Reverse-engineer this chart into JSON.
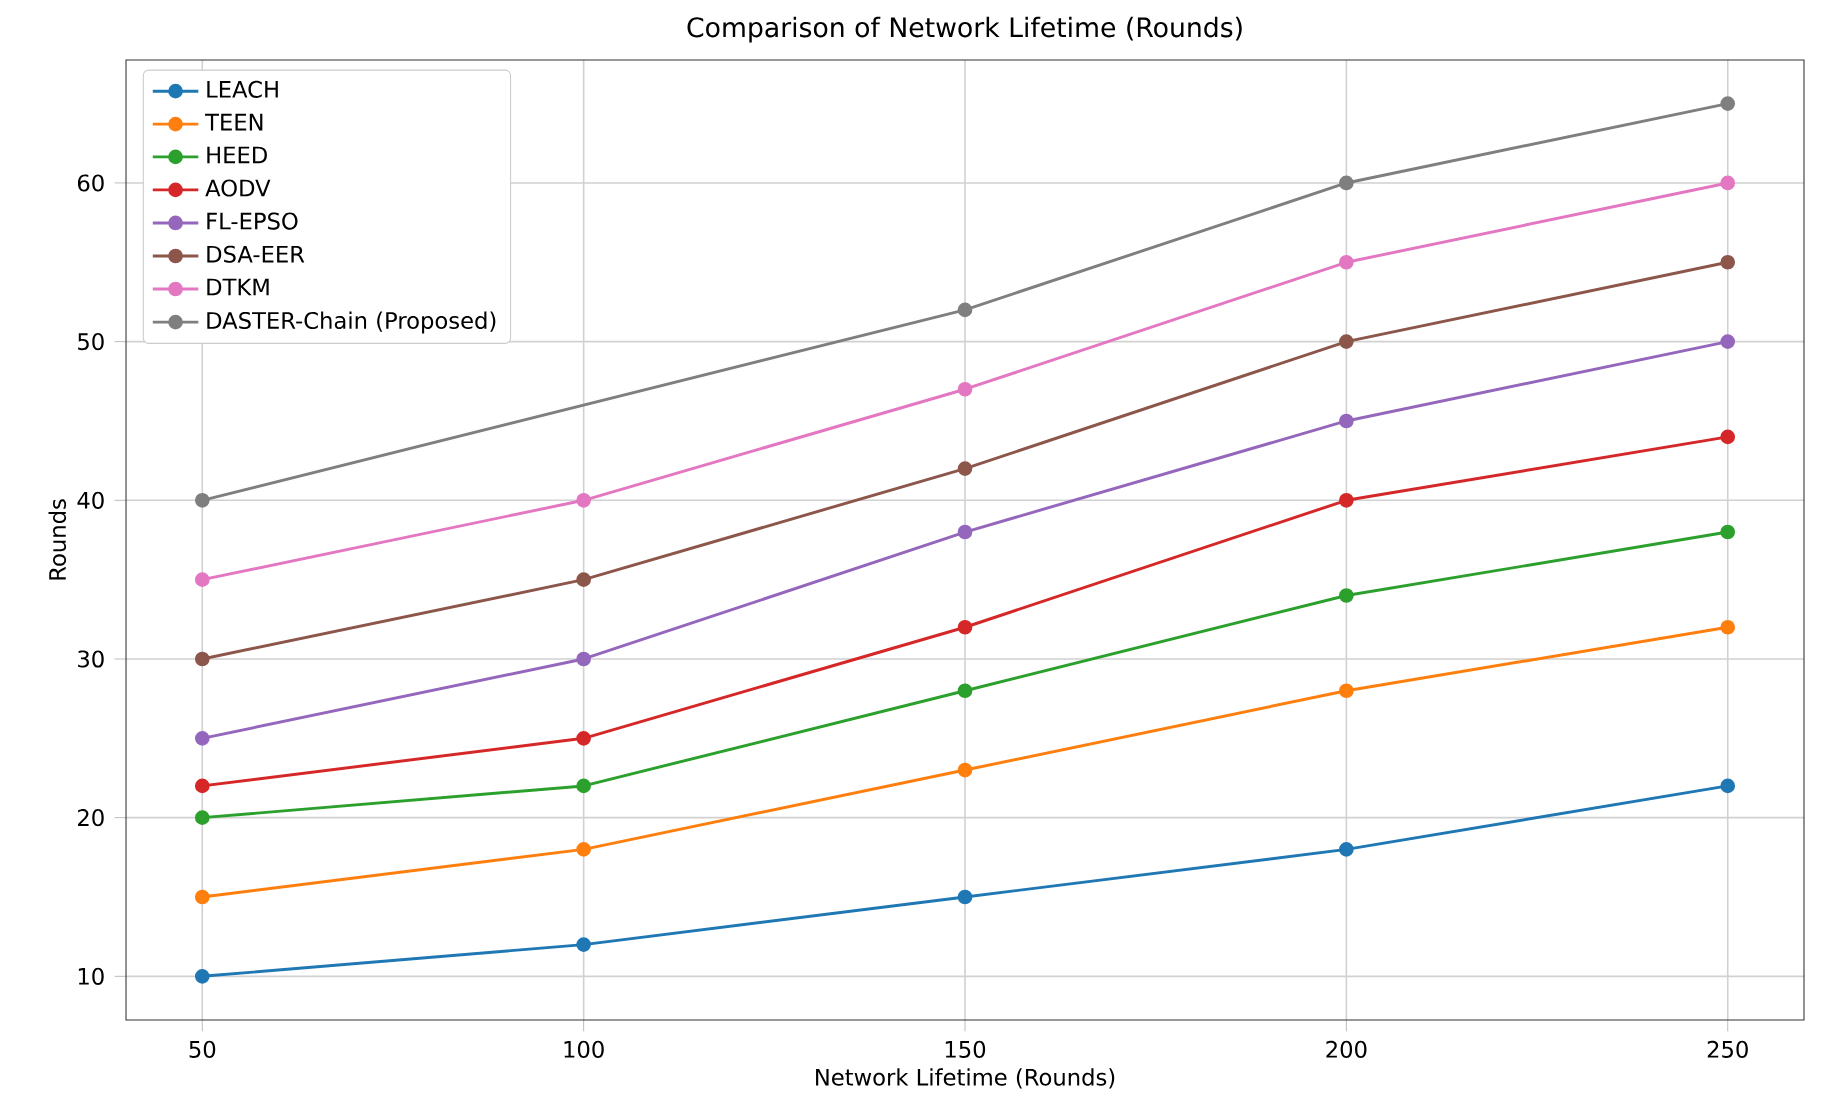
{
  "chart_data": {
    "type": "line",
    "title": "Comparison of Network Lifetime (Rounds)",
    "xlabel": "Network Lifetime (Rounds)",
    "ylabel": "Rounds",
    "x": [
      50,
      100,
      150,
      200,
      250
    ],
    "xlim": [
      40,
      260
    ],
    "xticks": [
      50,
      100,
      150,
      200,
      250
    ],
    "ylim": [
      7.25,
      67.75
    ],
    "yticks": [
      10,
      20,
      30,
      40,
      50,
      60
    ],
    "grid": true,
    "legend": "top left",
    "marker": "circle",
    "line_style": "solid",
    "series": [
      {
        "name": "LEACH",
        "color": "#1f77b4",
        "values": [
          10,
          12,
          15,
          18,
          22
        ]
      },
      {
        "name": "TEEN",
        "color": "#ff7f0e",
        "values": [
          15,
          18,
          23,
          28,
          32
        ]
      },
      {
        "name": "HEED",
        "color": "#2ca02c",
        "values": [
          20,
          22,
          28,
          34,
          38
        ]
      },
      {
        "name": "AODV",
        "color": "#d62728",
        "values": [
          22,
          25,
          32,
          40,
          44
        ]
      },
      {
        "name": "FL-EPSO",
        "color": "#9467bd",
        "values": [
          25,
          30,
          38,
          45,
          50
        ]
      },
      {
        "name": "DSA-EER",
        "color": "#8c564b",
        "values": [
          30,
          35,
          42,
          50,
          55
        ]
      },
      {
        "name": "DTKM",
        "color": "#e377c2",
        "values": [
          35,
          40,
          47,
          55,
          60
        ]
      },
      {
        "name": "DASTER-Chain (Proposed)",
        "color": "#7f7f7f",
        "values": [
          40,
          null,
          52,
          60,
          65
        ]
      }
    ]
  }
}
